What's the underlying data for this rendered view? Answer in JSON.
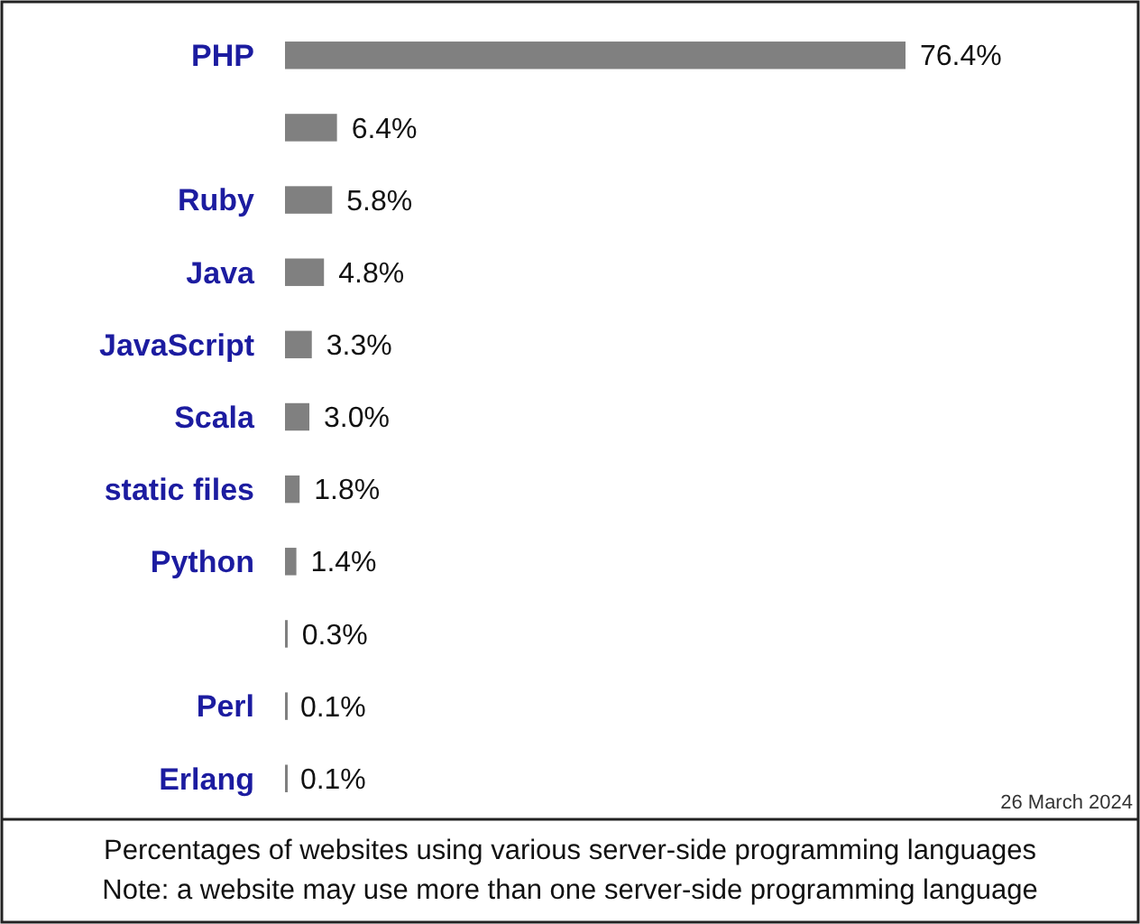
{
  "chart_data": {
    "type": "bar",
    "orientation": "horizontal",
    "categories": [
      "PHP",
      null,
      "Ruby",
      "Java",
      "JavaScript",
      "Scala",
      "static files",
      "Python",
      null,
      "Perl",
      "Erlang"
    ],
    "values": [
      76.4,
      6.4,
      5.8,
      4.8,
      3.3,
      3.0,
      1.8,
      1.4,
      0.3,
      0.1,
      0.1
    ],
    "value_labels": [
      "76.4%",
      "6.4%",
      "5.8%",
      "4.8%",
      "3.3%",
      "3.0%",
      "1.8%",
      "1.4%",
      "0.3%",
      "0.1%",
      "0.1%"
    ],
    "color": "#808080",
    "xlim": [
      0,
      76.4
    ],
    "annotations": [
      "26 March 2024",
      "Percentages of websites using various server-side programming languages",
      "Note: a website may use more than one server-side programming language"
    ]
  }
}
